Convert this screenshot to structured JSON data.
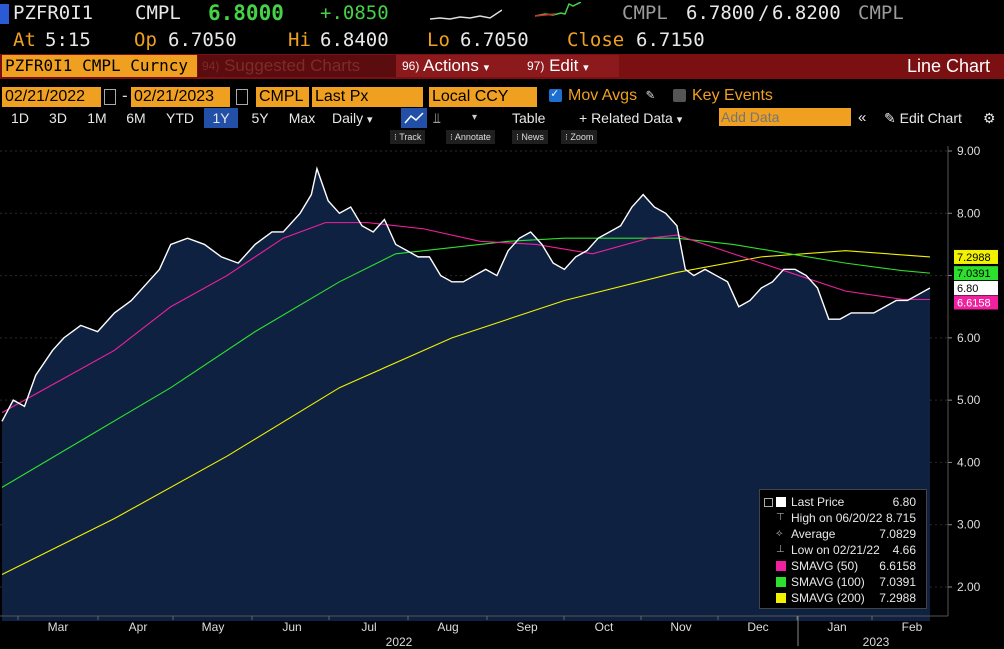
{
  "quote": {
    "ticker": "PZFR0I1",
    "source": "CMPL",
    "last": "6.8000",
    "change": "+.0850",
    "bid_ask_source": "CMPL",
    "bid": "6.7800",
    "slash": "/",
    "ask": "6.8200",
    "bid_ask_source2": "CMPL",
    "at_label": "At",
    "at_time": "5:15",
    "op_label": "Op",
    "op_value": "6.7050",
    "hi_label": "Hi",
    "hi_value": "6.8400",
    "lo_label": "Lo",
    "lo_value": "6.7050",
    "close_label": "Close",
    "close_value": "6.7150"
  },
  "toolbar": {
    "title": "PZFR0I1 CMPL Curncy",
    "suggested_num": "94)",
    "suggested_label": "Suggested Charts",
    "actions_num": "96)",
    "actions_label": "Actions",
    "edit_num": "97)",
    "edit_label": "Edit",
    "chart_type": "Line Chart",
    "caret": "▾"
  },
  "controls": {
    "start_date": "02/21/2022",
    "dash": "-",
    "end_date": "02/21/2023",
    "source": "CMPL",
    "field": "Last Px",
    "currency": "Local CCY",
    "mov_avgs_label": "Mov Avgs",
    "key_events_label": "Key Events",
    "ranges": [
      "1D",
      "3D",
      "1M",
      "6M",
      "YTD",
      "1Y",
      "5Y",
      "Max"
    ],
    "selected_range": "1Y",
    "period": "Daily",
    "table_label": "Table",
    "related_label": "+ Related Data",
    "add_data_placeholder": "Add Data",
    "edit_chart_label": "Edit Chart",
    "tools": [
      "Track",
      "Annotate",
      "News",
      "Zoom"
    ]
  },
  "chart_data": {
    "type": "area",
    "x_months": [
      "Mar",
      "Apr",
      "May",
      "Jun",
      "Jul",
      "Aug",
      "Sep",
      "Oct",
      "Nov",
      "Dec",
      "Jan",
      "Feb"
    ],
    "x_years": [
      "2022",
      "2023"
    ],
    "y_ticks": [
      "9.00",
      "8.00",
      "7.00",
      "6.00",
      "5.00",
      "4.00",
      "3.00",
      "2.00"
    ],
    "ylim": [
      1.5,
      9.3
    ],
    "right_labels": [
      {
        "text": "7.2988",
        "value": 7.2988,
        "color": "#f2f200"
      },
      {
        "text": "7.0391",
        "value": 7.0391,
        "color": "#2ee02e"
      },
      {
        "text": "6.80",
        "value": 6.8,
        "color": "#ffffff"
      },
      {
        "text": "6.6158",
        "value": 6.6158,
        "color": "#f020a0"
      }
    ],
    "series": [
      {
        "name": "Last Price",
        "color": "#ffffff",
        "values": [
          [
            0,
            4.66
          ],
          [
            4,
            5.0
          ],
          [
            8,
            4.9
          ],
          [
            12,
            5.4
          ],
          [
            18,
            5.8
          ],
          [
            22,
            6.0
          ],
          [
            28,
            6.2
          ],
          [
            34,
            6.1
          ],
          [
            40,
            6.4
          ],
          [
            46,
            6.6
          ],
          [
            52,
            6.9
          ],
          [
            56,
            7.1
          ],
          [
            60,
            7.5
          ],
          [
            66,
            7.6
          ],
          [
            72,
            7.5
          ],
          [
            78,
            7.3
          ],
          [
            84,
            7.2
          ],
          [
            90,
            7.5
          ],
          [
            96,
            7.7
          ],
          [
            100,
            7.7
          ],
          [
            106,
            8.0
          ],
          [
            110,
            8.3
          ],
          [
            112,
            8.715
          ],
          [
            116,
            8.2
          ],
          [
            120,
            8.0
          ],
          [
            124,
            8.1
          ],
          [
            128,
            7.8
          ],
          [
            132,
            7.7
          ],
          [
            136,
            7.9
          ],
          [
            140,
            7.5
          ],
          [
            144,
            7.4
          ],
          [
            148,
            7.3
          ],
          [
            152,
            7.3
          ],
          [
            156,
            7.0
          ],
          [
            160,
            6.9
          ],
          [
            164,
            6.9
          ],
          [
            168,
            7.0
          ],
          [
            172,
            7.1
          ],
          [
            176,
            7.0
          ],
          [
            180,
            7.4
          ],
          [
            184,
            7.6
          ],
          [
            188,
            7.7
          ],
          [
            192,
            7.5
          ],
          [
            196,
            7.2
          ],
          [
            200,
            7.1
          ],
          [
            204,
            7.3
          ],
          [
            208,
            7.4
          ],
          [
            212,
            7.6
          ],
          [
            216,
            7.7
          ],
          [
            220,
            7.8
          ],
          [
            224,
            8.1
          ],
          [
            228,
            8.3
          ],
          [
            232,
            8.1
          ],
          [
            236,
            8.0
          ],
          [
            240,
            7.8
          ],
          [
            243,
            7.1
          ],
          [
            246,
            7.0
          ],
          [
            250,
            7.1
          ],
          [
            254,
            7.0
          ],
          [
            258,
            6.9
          ],
          [
            262,
            6.5
          ],
          [
            266,
            6.6
          ],
          [
            270,
            6.8
          ],
          [
            274,
            6.9
          ],
          [
            278,
            7.1
          ],
          [
            282,
            7.1
          ],
          [
            286,
            7.0
          ],
          [
            290,
            6.8
          ],
          [
            294,
            6.3
          ],
          [
            298,
            6.3
          ],
          [
            302,
            6.4
          ],
          [
            306,
            6.4
          ],
          [
            310,
            6.4
          ],
          [
            314,
            6.5
          ],
          [
            318,
            6.6
          ],
          [
            322,
            6.6
          ],
          [
            326,
            6.7
          ],
          [
            330,
            6.8
          ]
        ]
      },
      {
        "name": "SMAVG (50)",
        "color": "#f020a0",
        "values": [
          [
            0,
            4.8
          ],
          [
            20,
            5.3
          ],
          [
            40,
            5.8
          ],
          [
            60,
            6.5
          ],
          [
            80,
            7.0
          ],
          [
            100,
            7.6
          ],
          [
            115,
            7.85
          ],
          [
            130,
            7.85
          ],
          [
            150,
            7.75
          ],
          [
            170,
            7.55
          ],
          [
            190,
            7.5
          ],
          [
            210,
            7.35
          ],
          [
            230,
            7.6
          ],
          [
            240,
            7.65
          ],
          [
            260,
            7.35
          ],
          [
            280,
            7.05
          ],
          [
            300,
            6.75
          ],
          [
            320,
            6.62
          ],
          [
            330,
            6.6158
          ]
        ]
      },
      {
        "name": "SMAVG (100)",
        "color": "#2ee02e",
        "values": [
          [
            0,
            3.6
          ],
          [
            30,
            4.4
          ],
          [
            60,
            5.2
          ],
          [
            90,
            6.1
          ],
          [
            120,
            6.9
          ],
          [
            140,
            7.35
          ],
          [
            160,
            7.45
          ],
          [
            180,
            7.55
          ],
          [
            200,
            7.6
          ],
          [
            220,
            7.6
          ],
          [
            240,
            7.6
          ],
          [
            260,
            7.5
          ],
          [
            280,
            7.35
          ],
          [
            300,
            7.2
          ],
          [
            320,
            7.08
          ],
          [
            330,
            7.0391
          ]
        ]
      },
      {
        "name": "SMAVG (200)",
        "color": "#f2f200",
        "values": [
          [
            0,
            2.2
          ],
          [
            40,
            3.1
          ],
          [
            80,
            4.1
          ],
          [
            120,
            5.2
          ],
          [
            160,
            6.0
          ],
          [
            200,
            6.6
          ],
          [
            240,
            7.05
          ],
          [
            270,
            7.3
          ],
          [
            300,
            7.4
          ],
          [
            330,
            7.2988
          ]
        ]
      }
    ],
    "legend": [
      {
        "label": "Last Price",
        "value": "6.80",
        "swatch": "#ffffff"
      },
      {
        "label": "High on 06/20/22",
        "value": "8.715",
        "swatch": "none"
      },
      {
        "label": "Average",
        "value": "7.0829",
        "swatch": "none"
      },
      {
        "label": "Low on 02/21/22",
        "value": "4.66",
        "swatch": "none"
      },
      {
        "label": "SMAVG (50)",
        "value": "6.6158",
        "swatch": "#f020a0"
      },
      {
        "label": "SMAVG (100)",
        "value": "7.0391",
        "swatch": "#2ee02e"
      },
      {
        "label": "SMAVG (200)",
        "value": "7.2988",
        "swatch": "#f2f200"
      }
    ],
    "area_fill": "#0f2140"
  }
}
